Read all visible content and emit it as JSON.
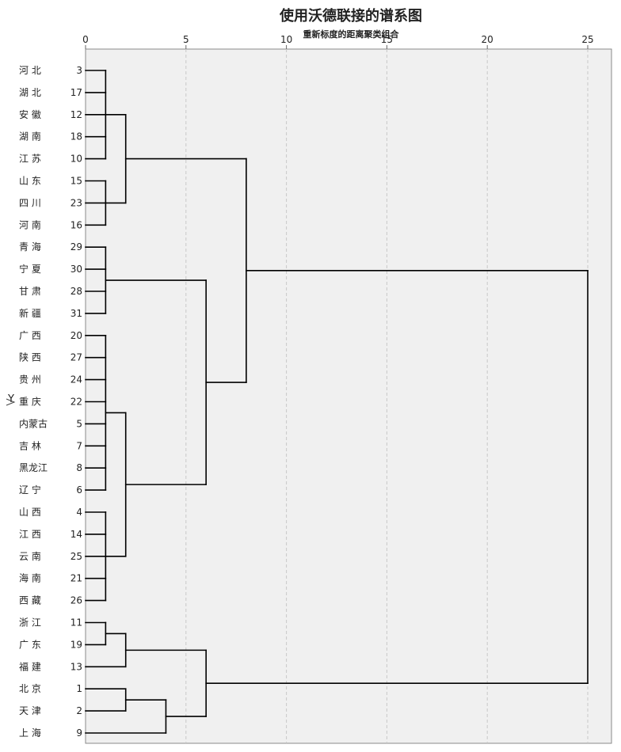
{
  "chart_data": {
    "type": "dendrogram",
    "title": "使用沃德联接的谱系图",
    "subtitle": "重新标度的距离聚类组合",
    "ylabel": "Y",
    "xlim": [
      0,
      25
    ],
    "xticks": [
      0,
      5,
      10,
      15,
      20,
      25
    ],
    "grid": true,
    "leaves": [
      {
        "name": "河 北",
        "case": "3"
      },
      {
        "name": "湖 北",
        "case": "17"
      },
      {
        "name": "安 徽",
        "case": "12"
      },
      {
        "name": "湖 南",
        "case": "18"
      },
      {
        "name": "江 苏",
        "case": "10"
      },
      {
        "name": "山 东",
        "case": "15"
      },
      {
        "name": "四 川",
        "case": "23"
      },
      {
        "name": "河 南",
        "case": "16"
      },
      {
        "name": "青 海",
        "case": "29"
      },
      {
        "name": "宁 夏",
        "case": "30"
      },
      {
        "name": "甘 肃",
        "case": "28"
      },
      {
        "name": "新 疆",
        "case": "31"
      },
      {
        "name": "广 西",
        "case": "20"
      },
      {
        "name": "陕 西",
        "case": "27"
      },
      {
        "name": "贵 州",
        "case": "24"
      },
      {
        "name": "重 庆",
        "case": "22"
      },
      {
        "name": "内蒙古",
        "case": "5"
      },
      {
        "name": "吉 林",
        "case": "7"
      },
      {
        "name": "黑龙江",
        "case": "8"
      },
      {
        "name": "辽 宁",
        "case": "6"
      },
      {
        "name": "山 西",
        "case": "4"
      },
      {
        "name": "江 西",
        "case": "14"
      },
      {
        "name": "云 南",
        "case": "25"
      },
      {
        "name": "海 南",
        "case": "21"
      },
      {
        "name": "西 藏",
        "case": "26"
      },
      {
        "name": "浙 江",
        "case": "11"
      },
      {
        "name": "广 东",
        "case": "19"
      },
      {
        "name": "福 建",
        "case": "13"
      },
      {
        "name": "北 京",
        "case": "1"
      },
      {
        "name": "天 津",
        "case": "2"
      },
      {
        "name": "上 海",
        "case": "9"
      }
    ],
    "merges": [
      {
        "id": "A",
        "children": [
          0,
          1,
          2,
          3,
          4
        ],
        "distance": 1
      },
      {
        "id": "B",
        "children": [
          5,
          6,
          7
        ],
        "distance": 1
      },
      {
        "id": "C",
        "children": [
          "A",
          "B"
        ],
        "distance": 2
      },
      {
        "id": "D",
        "children": [
          8,
          9,
          10,
          11
        ],
        "distance": 1
      },
      {
        "id": "E",
        "children": [
          12,
          13,
          14,
          15,
          16,
          17,
          18,
          19
        ],
        "distance": 1
      },
      {
        "id": "F",
        "children": [
          20,
          21,
          22,
          23,
          24
        ],
        "distance": 1
      },
      {
        "id": "G",
        "children": [
          "E",
          "F"
        ],
        "distance": 2
      },
      {
        "id": "H",
        "children": [
          "D",
          "G"
        ],
        "distance": 6
      },
      {
        "id": "I",
        "children": [
          "C",
          "H"
        ],
        "distance": 8
      },
      {
        "id": "J",
        "children": [
          25,
          26
        ],
        "distance": 1
      },
      {
        "id": "K",
        "children": [
          "J",
          27
        ],
        "distance": 2
      },
      {
        "id": "L",
        "children": [
          28,
          29
        ],
        "distance": 2
      },
      {
        "id": "M",
        "children": [
          "L",
          30
        ],
        "distance": 4
      },
      {
        "id": "N",
        "children": [
          "K",
          "M"
        ],
        "distance": 6
      },
      {
        "id": "O",
        "children": [
          "I",
          "N"
        ],
        "distance": 25
      }
    ]
  }
}
